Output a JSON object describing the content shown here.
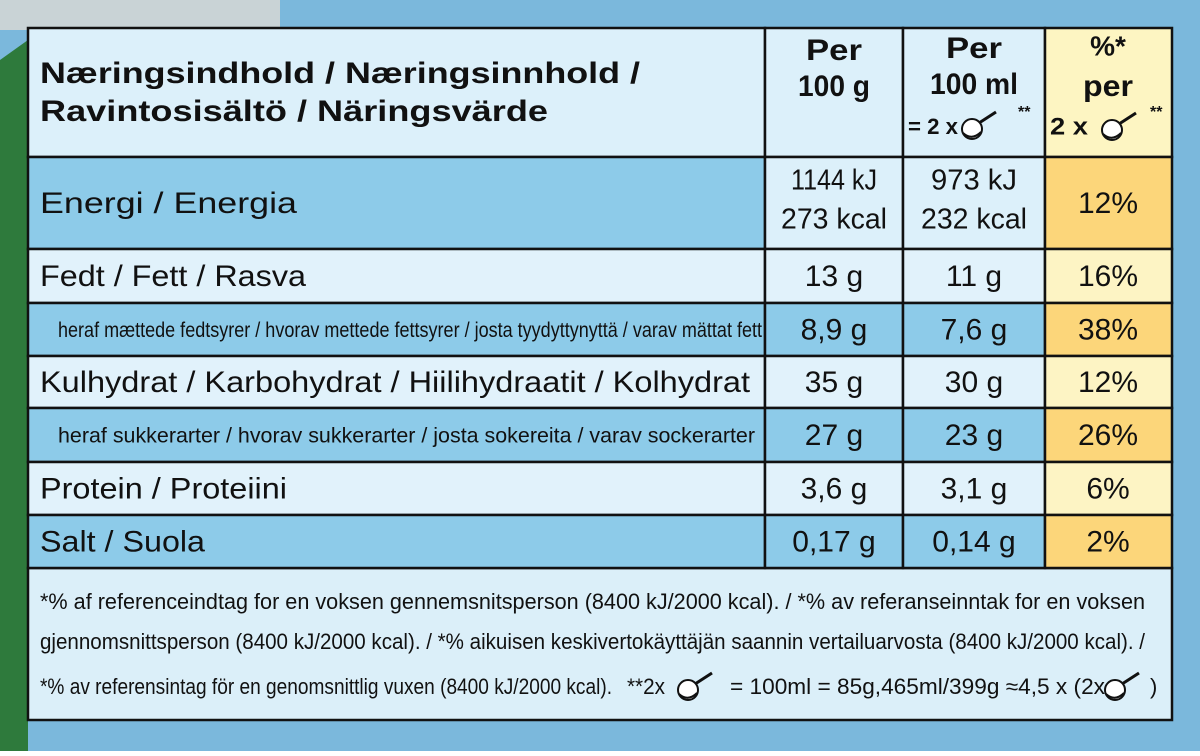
{
  "header": {
    "label": [
      "Næringsindhold / Næringsinnhold /",
      "Ravintosisältö / Näringsvärde"
    ],
    "per_100g": [
      "Per",
      "100 g"
    ],
    "per_100ml": [
      "Per",
      "100 ml",
      "= 2 x",
      "**"
    ],
    "percent": [
      "%*",
      "per",
      "2 x",
      "**"
    ]
  },
  "rows": [
    {
      "label": "Energi / Energia",
      "per_100g": [
        "1144 kJ",
        "273 kcal"
      ],
      "per_100ml": [
        "973 kJ",
        "232 kcal"
      ],
      "percent": "12%"
    },
    {
      "label": "Fedt / Fett / Rasva",
      "per_100g": "13 g",
      "per_100ml": "11 g",
      "percent": "16%"
    },
    {
      "label": "heraf mættede fedtsyrer / hvorav mettede fettsyrer / josta tyydyttynyttä / varav mättat fett",
      "per_100g": "8,9 g",
      "per_100ml": "7,6 g",
      "percent": "38%"
    },
    {
      "label": "Kulhydrat / Karbohydrat / Hiilihydraatit / Kolhydrat",
      "per_100g": "35 g",
      "per_100ml": "30 g",
      "percent": "12%"
    },
    {
      "label": "heraf sukkerarter / hvorav sukkerarter / josta sokereita / varav sockerarter",
      "per_100g": "27 g",
      "per_100ml": "23 g",
      "percent": "26%"
    },
    {
      "label": "Protein / Proteiini",
      "per_100g": "3,6 g",
      "per_100ml": "3,1 g",
      "percent": "6%"
    },
    {
      "label": "Salt / Suola",
      "per_100g": "0,17 g",
      "per_100ml": "0,14 g",
      "percent": "2%"
    }
  ],
  "footnote": [
    "*% af referenceindtag for en voksen gennemsnitsperson (8400 kJ/2000 kcal). / *% av referanseinntak for en voksen",
    "gjennomsnittsperson (8400 kJ/2000 kcal). / *% aikuisen keskivertokäyttäjän saannin vertailuarvosta (8400 kJ/2000 kcal). /",
    [
      "*% av referensintag för en genomsnittlig vuxen (8400 kJ/2000 kcal).",
      "**2x",
      "= 100ml = 85g,465ml/399g ≈4,5 x (2x",
      ")"
    ]
  ]
}
